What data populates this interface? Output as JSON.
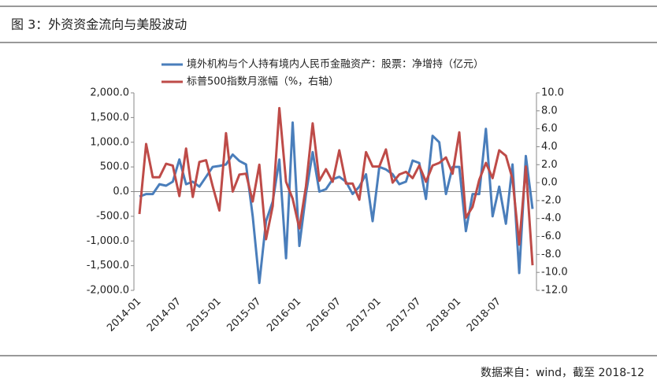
{
  "chart_data": {
    "type": "line",
    "title": "图 3：外资资金流向与美股波动",
    "source": "数据来自：wind，截至 2018-12",
    "categories": [
      "2014-01",
      null,
      null,
      null,
      null,
      null,
      "2014-07",
      null,
      null,
      null,
      null,
      null,
      "2015-01",
      null,
      null,
      null,
      null,
      null,
      "2015-07",
      null,
      null,
      null,
      null,
      null,
      "2016-01",
      null,
      null,
      null,
      null,
      null,
      "2016-07",
      null,
      null,
      null,
      null,
      null,
      "2017-01",
      null,
      null,
      null,
      null,
      null,
      "2017-07",
      null,
      null,
      null,
      null,
      null,
      "2018-01",
      null,
      null,
      null,
      null,
      null,
      "2018-07",
      null,
      null,
      null,
      null,
      null
    ],
    "series": [
      {
        "name": "境外机构与个人持有境内人民币金融资产：股票：净增持（亿元）",
        "color": "#4a7ebb",
        "axis": "y",
        "values": [
          -100,
          -50,
          -50,
          150,
          120,
          200,
          650,
          150,
          200,
          100,
          300,
          500,
          520,
          550,
          750,
          620,
          550,
          -500,
          -1850,
          -600,
          -200,
          650,
          -1350,
          1400,
          -1100,
          -50,
          800,
          0,
          50,
          250,
          300,
          200,
          -50,
          100,
          350,
          -600,
          500,
          450,
          350,
          150,
          200,
          630,
          580,
          -150,
          1130,
          1000,
          -50,
          500,
          500,
          -800,
          -50,
          -50,
          1270,
          -500,
          100,
          -650,
          550,
          -1650,
          720,
          -350
        ]
      },
      {
        "name": "标普500指数月涨幅（%，右轴）",
        "color": "#be4b48",
        "axis": "y2",
        "values": [
          -3.5,
          4.3,
          0.6,
          0.6,
          2.1,
          1.9,
          -1.5,
          3.8,
          -1.6,
          2.3,
          2.5,
          -0.4,
          -3.1,
          5.5,
          -1.0,
          0.9,
          1.0,
          -2.1,
          2.0,
          -6.3,
          -2.6,
          8.3,
          0.1,
          -1.8,
          -5.1,
          -0.4,
          6.6,
          0.2,
          1.5,
          0.1,
          3.6,
          -0.1,
          -0.1,
          -1.9,
          3.4,
          1.8,
          1.8,
          3.7,
          0.0,
          0.9,
          1.2,
          0.5,
          1.9,
          0.1,
          1.9,
          2.2,
          2.8,
          1.0,
          5.6,
          -3.9,
          -2.7,
          0.3,
          2.2,
          0.5,
          3.6,
          3.0,
          0.4,
          -6.9,
          1.8,
          -9.2
        ]
      }
    ],
    "ylim": [
      -2000,
      2000
    ],
    "yticks": [
      {
        "value": 2000,
        "label": "2,000.0"
      },
      {
        "value": 1500,
        "label": "1,500.0"
      },
      {
        "value": 1000,
        "label": "1,000.0"
      },
      {
        "value": 500,
        "label": "500.0"
      },
      {
        "value": 0,
        "label": "0.0"
      },
      {
        "value": -500,
        "label": "-500.0"
      },
      {
        "value": -1000,
        "label": "-1,000.0"
      },
      {
        "value": -1500,
        "label": "-1,500.0"
      },
      {
        "value": -2000,
        "label": "-2,000.0"
      }
    ],
    "y2lim": [
      -12,
      10
    ],
    "y2ticks": [
      {
        "value": 10,
        "label": "10.0"
      },
      {
        "value": 8,
        "label": "8.0"
      },
      {
        "value": 6,
        "label": "6.0"
      },
      {
        "value": 4,
        "label": "4.0"
      },
      {
        "value": 2,
        "label": "2.0"
      },
      {
        "value": 0,
        "label": "0.0"
      },
      {
        "value": -2,
        "label": "-2.0"
      },
      {
        "value": -4,
        "label": "-4.0"
      },
      {
        "value": -6,
        "label": "-6.0"
      },
      {
        "value": -8,
        "label": "-8.0"
      },
      {
        "value": -10,
        "label": "-10.0"
      },
      {
        "value": -12,
        "label": "-12.0"
      }
    ]
  }
}
